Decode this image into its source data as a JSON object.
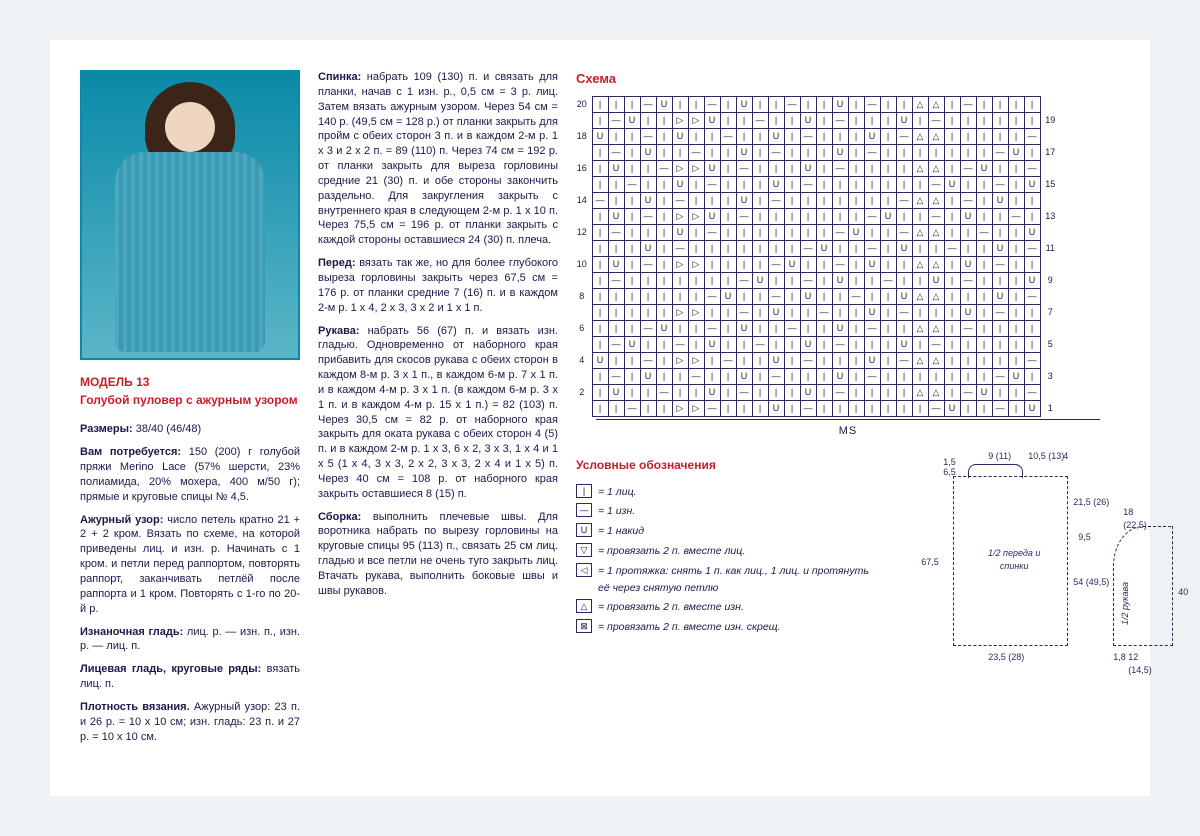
{
  "title": "МОДЕЛЬ 13",
  "subtitle": "Голубой пуловер с ажурным узором",
  "left": {
    "sizes_label": "Размеры:",
    "sizes": " 38/40 (46/48)",
    "need_label": "Вам потребуется:",
    "need": " 150 (200) г голубой пряжи Merino Lace (57% шерсти, 23% полиамида, 20% мохера, 400 м/50 г); прямые и круговые спицы № 4,5.",
    "pattern_label": "Ажурный узор:",
    "pattern": " число петель кратно 21 + 2 + 2 кром. Вязать по схеме, на которой приведены лиц. и изн. р. Начинать с 1 кром. и петли перед раппортом, повторять раппорт, заканчивать петлёй после раппорта и 1 кром. Повторять с 1-го по 20-й р.",
    "p2_label": "Изнаночная гладь:",
    "p2": " лиц. р. — изн. п., изн. р. — лиц. п.",
    "p3_label": "Лицевая гладь, круговые ряды:",
    "p3": " вязать лиц. п.",
    "p4_label": "Плотность вязания.",
    "p4": " Ажурный узор: 23 п. и 26 р. = 10 х 10 см; изн. гладь: 23 п. и 27 р. = 10 х 10 см."
  },
  "mid": {
    "back_label": "Спинка:",
    "back": " набрать 109 (130) п. и связать для планки, начав с 1 изн. р., 0,5 см = 3 р. лиц. Затем вязать ажурным узором. Через 54 см = 140 р. (49,5 см = 128 р.) от планки закрыть для пройм с обеих сторон 3 п. и в каждом 2-м р. 1 х 3 и 2 х 2 п. = 89 (110) п. Через 74 см = 192 р. от планки закрыть для выреза горловины средние 21 (30) п. и обе стороны закончить раздельно. Для закругления закрыть с внутреннего края в следующем 2-м р. 1 х 10 п. Через 75,5 см = 196 р. от планки закрыть с каждой стороны оставшиеся 24 (30) п. плеча.",
    "front_label": "Перед:",
    "front": " вязать так же, но для более глубокого выреза горловины закрыть через 67,5 см = 176 р. от планки средние 7 (16) п. и в каждом 2-м р. 1 х 4, 2 х 3, 3 х 2 и 1 х 1 п.",
    "sleeve_label": "Рукава:",
    "sleeve": " набрать 56 (67) п. и вязать изн. гладью. Одновременно от наборного края прибавить для скосов рукава с обеих сторон в каждом 8-м р. 3 х 1 п., в каждом 6-м р. 7 х 1 п. и в каждом 4-м р. 3 х 1 п. (в каждом 6-м р. 3 х 1 п. и в каждом 4-м р. 15 х 1 п.) = 82 (103) п. Через 30,5 см = 82 р. от наборного края закрыть для оката рукава с обеих сторон 4 (5) п. и в каждом 2-м р. 1 х 3, 6 х 2, 3 х 3, 1 х 4 и 1 х 5 (1 х 4, 3 х 3, 2 х 2, 3 х 3, 2 х 4 и 1 х 5) п. Через 40 см = 108 р. от наборного края закрыть оставшиеся 8 (15) п.",
    "assembly_label": "Сборка:",
    "assembly": " выполнить плечевые швы. Для воротника набрать по вырезу горловины на круговые спицы 95 (113) п., связать 25 см лиц. гладью и все петли не очень туго закрыть лиц. Втачать рукава, выполнить боковые швы и швы рукавов."
  },
  "chart": {
    "title": "Схема",
    "rows_left": [
      "20",
      "",
      "18",
      "",
      "16",
      "",
      "14",
      "",
      "12",
      "",
      "10",
      "",
      "8",
      "",
      "6",
      "",
      "4",
      "",
      "2",
      ""
    ],
    "rows_right": [
      "",
      "19",
      "",
      "17",
      "",
      "15",
      "",
      "13",
      "",
      "11",
      "",
      "9",
      "",
      "7",
      "",
      "5",
      "",
      "3",
      "",
      "1"
    ],
    "cols": 28,
    "ms_label": "MS"
  },
  "legend": {
    "title": "Условные обозначения",
    "items": [
      {
        "sym": "|",
        "text": "= 1 лиц."
      },
      {
        "sym": "—",
        "text": "= 1 изн."
      },
      {
        "sym": "U",
        "text": "= 1 накид"
      },
      {
        "sym": "▽",
        "text": "= провязать 2 п. вместе лиц."
      },
      {
        "sym": "◁",
        "text": "= 1 протяжка: снять 1 п. как лиц., 1 лиц. и протянуть её через снятую петлю"
      },
      {
        "sym": "△",
        "text": "= провязать 2 п. вместе изн."
      },
      {
        "sym": "⊠",
        "text": "= провязать 2 п. вместе изн. скрещ."
      }
    ]
  },
  "schematic": {
    "body_label": "1/2 переда и спинки",
    "sleeve_label": "1/2 рукава",
    "dims": {
      "top_a": "1,5",
      "top_b": "6,5",
      "top_c": "9 (11)",
      "top_d": "10,5 (13)",
      "top_e": "4",
      "left_h": "67,5",
      "right_a": "21,5 (26)",
      "right_b": "54 (49,5)",
      "bottom": "23,5 (28)",
      "mid": "9,5",
      "sl_top": "18 (22,5)",
      "sl_h": "40",
      "sl_bottom": "12 (14,5)",
      "sl_bottom2": "1,8"
    }
  }
}
